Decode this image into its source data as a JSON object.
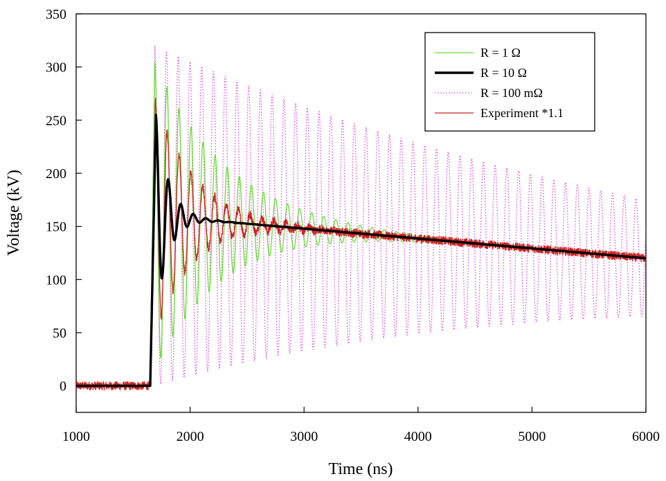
{
  "chart_data": {
    "type": "line",
    "title": "",
    "xlabel": "Time (ns)",
    "ylabel": "Voltage (kV)",
    "xlim": [
      1000,
      6000
    ],
    "ylim": [
      -25,
      350
    ],
    "xticks": [
      1000,
      2000,
      3000,
      4000,
      5000,
      6000
    ],
    "yticks": [
      0,
      50,
      100,
      150,
      200,
      250,
      300,
      350
    ],
    "legend_position": "top-right",
    "grid": false,
    "series": [
      {
        "name": "R = 1 Ω",
        "style": "solid-thin",
        "color": "#66dd33",
        "model": {
          "t_rise": 1650,
          "v_base": 0,
          "v_mean_start": 160,
          "v_mean_end": 120,
          "amp0": 145,
          "amp_decay_ns": 620,
          "period_ns": 106,
          "first_peak_ns": 1690
        },
        "approx_peak_values": [
          {
            "x": 1690,
            "y": 310
          },
          {
            "x": 1730,
            "y": 25
          },
          {
            "x": 1800,
            "y": 287
          },
          {
            "x": 1900,
            "y": 272
          },
          {
            "x": 2000,
            "y": 253
          },
          {
            "x": 2500,
            "y": 200
          },
          {
            "x": 3000,
            "y": 170
          },
          {
            "x": 4000,
            "y": 143
          },
          {
            "x": 4600,
            "y": 133
          }
        ]
      },
      {
        "name": "R = 10 Ω",
        "style": "solid-thick",
        "color": "#000000",
        "model": {
          "t_rise": 1650,
          "v_base": 0,
          "v_mean_start": 160,
          "v_mean_end": 120,
          "amp0": 95,
          "amp_decay_ns": 110,
          "period_ns": 110,
          "first_peak_ns": 1700
        },
        "approx_peak_values": [
          {
            "x": 1700,
            "y": 248
          },
          {
            "x": 1750,
            "y": 113
          },
          {
            "x": 1810,
            "y": 183
          },
          {
            "x": 1920,
            "y": 168
          },
          {
            "x": 2000,
            "y": 157
          },
          {
            "x": 3000,
            "y": 147
          },
          {
            "x": 4000,
            "y": 137
          },
          {
            "x": 5000,
            "y": 128
          },
          {
            "x": 6000,
            "y": 120
          }
        ]
      },
      {
        "name": "R = 100 mΩ",
        "style": "dotted",
        "color": "#dd44dd",
        "model": {
          "t_rise": 1650,
          "v_base": 0,
          "v_mean_start": 160,
          "v_mean_end": 120,
          "amp0": 160,
          "amp_decay_ns": 4000,
          "period_ns": 103,
          "first_peak_ns": 1690
        },
        "approx_peak_values": [
          {
            "x": 1690,
            "y": 318
          },
          {
            "x": 1740,
            "y": 5
          },
          {
            "x": 2000,
            "y": 300
          },
          {
            "x": 3000,
            "y": 250
          },
          {
            "x": 4000,
            "y": 215
          },
          {
            "x": 5000,
            "y": 190
          },
          {
            "x": 6000,
            "y": 168
          }
        ]
      },
      {
        "name": "Experiment *1.1",
        "style": "solid-thin-noisy",
        "color": "#cc2222",
        "model": {
          "t_rise": 1650,
          "v_base": 0,
          "v_mean_start": 160,
          "v_mean_end": 120,
          "amp0": 110,
          "amp_decay_ns": 330,
          "period_ns": 104,
          "first_peak_ns": 1695,
          "noise_kv": 4
        },
        "approx_peak_values": [
          {
            "x": 1695,
            "y": 268
          },
          {
            "x": 1750,
            "y": 83
          },
          {
            "x": 1810,
            "y": 237
          },
          {
            "x": 1900,
            "y": 220
          },
          {
            "x": 2000,
            "y": 200
          },
          {
            "x": 2500,
            "y": 170
          },
          {
            "x": 3000,
            "y": 150
          },
          {
            "x": 4000,
            "y": 135
          },
          {
            "x": 5000,
            "y": 125
          },
          {
            "x": 6000,
            "y": 118
          }
        ]
      }
    ]
  }
}
